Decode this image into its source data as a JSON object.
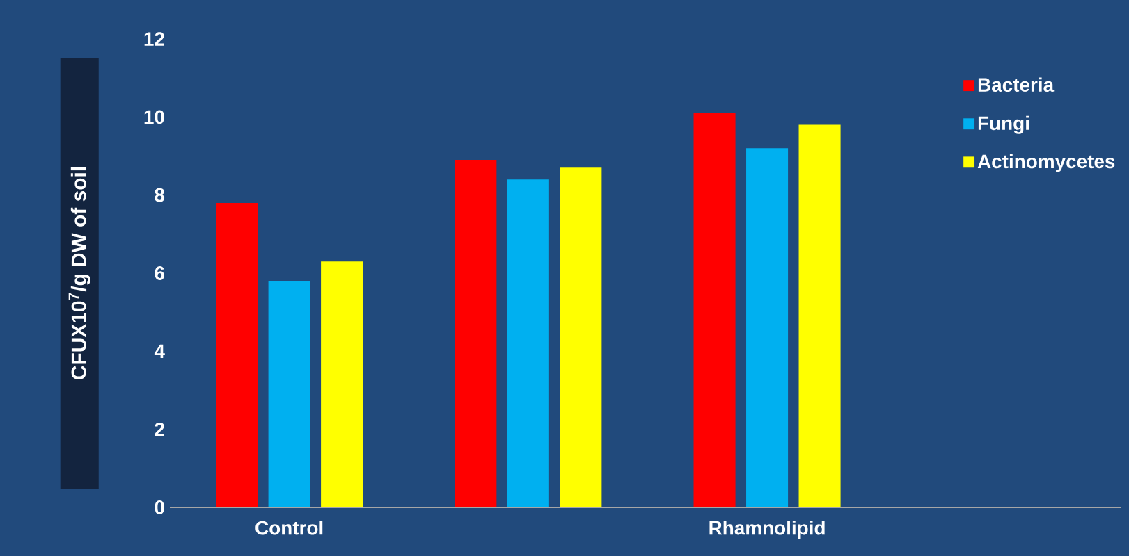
{
  "chart_data": {
    "type": "bar",
    "ylabel": "CFUX10$^{7}$/g DW of soil",
    "categories": [
      "Control",
      null,
      "Rhamnolipid"
    ],
    "series": [
      {
        "name": "Bacteria",
        "color": "#ff0000",
        "values": [
          7.8,
          8.9,
          10.1
        ]
      },
      {
        "name": "Fungi",
        "color": "#00b0f0",
        "values": [
          5.8,
          8.4,
          9.2
        ]
      },
      {
        "name": "Actinomycetes",
        "color": "#ffff00",
        "values": [
          6.3,
          8.7,
          9.8
        ]
      }
    ],
    "ylim": [
      0,
      12
    ],
    "yticks": [
      0,
      2,
      4,
      6,
      8,
      10,
      12
    ],
    "grid": false,
    "legend": "top right"
  }
}
